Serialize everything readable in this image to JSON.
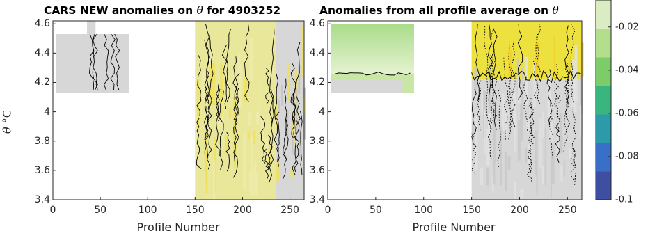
{
  "title_left": "CARS NEW anomalies on",
  "title_left_sym": "θ",
  "title_left_suffix": "for 4903252",
  "title_right": "Anomalies from all profile average on",
  "title_right_sym": "θ",
  "colors": {
    "grey": "#d7d7d7",
    "yellow": "#ece13f",
    "paleyellow": "#e8e79a",
    "lightgreen": "#c8e7a5",
    "contour": "#000000"
  },
  "chart_data": [
    {
      "type": "heatmap",
      "title": "CARS NEW anomalies on θ for 4903252",
      "xlabel": "Profile Number",
      "ylabel": "θ °C",
      "ylabel_sym": "θ",
      "ylabel_unit": "°C",
      "xlim": [
        0,
        265
      ],
      "ylim": [
        3.4,
        4.62
      ],
      "xticks": [
        "0",
        "50",
        "100",
        "150",
        "200",
        "250"
      ],
      "yticks": [
        "3.4",
        "3.6",
        "3.8",
        "4",
        "4.2",
        "4.4",
        "4.6"
      ],
      "regions": [
        {
          "x": [
            3,
            80
          ],
          "y": [
            4.13,
            4.53
          ],
          "fill": "grey"
        },
        {
          "x": [
            36,
            45
          ],
          "y": [
            4.53,
            4.62
          ],
          "fill": "grey"
        },
        {
          "x": [
            150,
            265
          ],
          "y": [
            3.4,
            4.62
          ],
          "fill": "paleyellow"
        },
        {
          "x": [
            235,
            265
          ],
          "y": [
            3.4,
            4.62
          ],
          "fill": "grey"
        }
      ]
    },
    {
      "type": "heatmap",
      "title": "Anomalies from all profile average on θ",
      "xlabel": "Profile Number",
      "xlim": [
        0,
        265
      ],
      "ylim": [
        3.4,
        4.62
      ],
      "xticks": [
        "0",
        "50",
        "100",
        "150",
        "200",
        "250"
      ],
      "yticks": [
        "3.4",
        "3.6",
        "3.8",
        "4",
        "4.2",
        "4.4",
        "4.6"
      ],
      "regions": [
        {
          "x": [
            3,
            90
          ],
          "y": [
            4.13,
            4.6
          ],
          "fill": "lightgreen"
        },
        {
          "x": [
            150,
            265
          ],
          "y": [
            3.4,
            4.22
          ],
          "fill": "grey"
        },
        {
          "x": [
            150,
            265
          ],
          "y": [
            4.22,
            4.62
          ],
          "fill": "yellow"
        }
      ]
    },
    {
      "type": "colorbar",
      "ticks": [
        "-0.02",
        "-0.04",
        "-0.06",
        "-0.08",
        "-0.1"
      ],
      "tick_values": [
        -0.02,
        -0.04,
        -0.06,
        -0.08,
        -0.1
      ],
      "range": [
        -0.1,
        -0.0075
      ],
      "colors": [
        "#3e4ea0",
        "#3a6fc8",
        "#2c9aa9",
        "#3ab57d",
        "#7ccd6a",
        "#b2de8d",
        "#d9ecc2"
      ]
    }
  ]
}
